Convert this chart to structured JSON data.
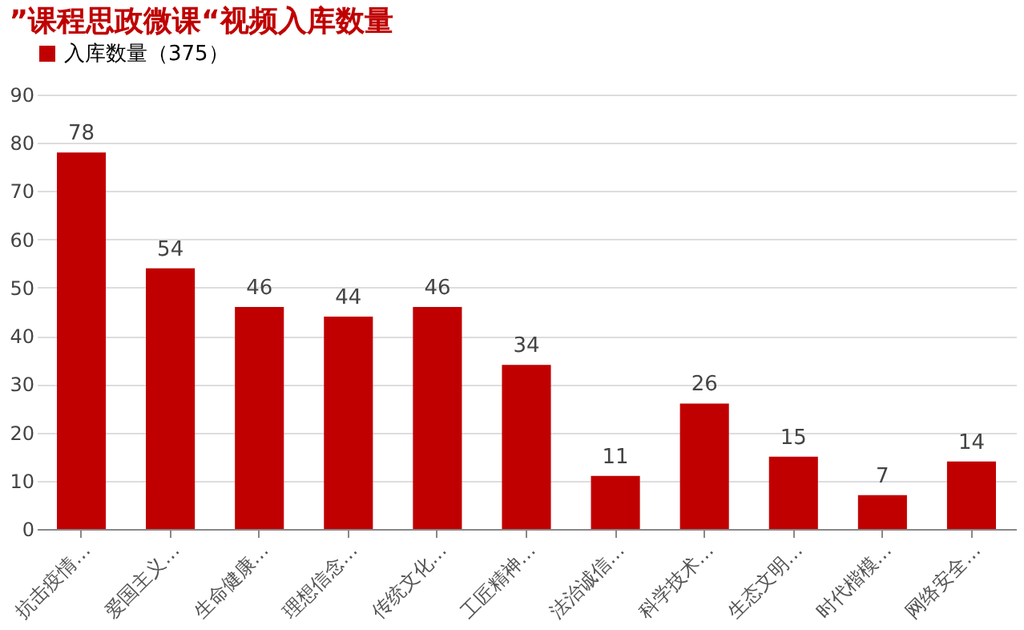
{
  "chart_data": {
    "type": "bar",
    "title": "”课程思政微课“视频入库数量",
    "categories": [
      "抗击疫情…",
      "爱国主义…",
      "生命健康…",
      "理想信念…",
      "传统文化…",
      "工匠精神…",
      "法治诚信…",
      "科学技术…",
      "生态文明…",
      "时代楷模…",
      "网络安全…"
    ],
    "series": [
      {
        "name": "入库数量（375）",
        "color": "#c00000",
        "values": [
          78,
          54,
          46,
          44,
          46,
          34,
          11,
          26,
          15,
          7,
          14
        ]
      }
    ],
    "ylim": [
      0,
      90
    ],
    "yticks": [
      0,
      10,
      20,
      30,
      40,
      50,
      60,
      70,
      80,
      90
    ],
    "grid": "y",
    "legend": "top",
    "data_labels": true
  }
}
